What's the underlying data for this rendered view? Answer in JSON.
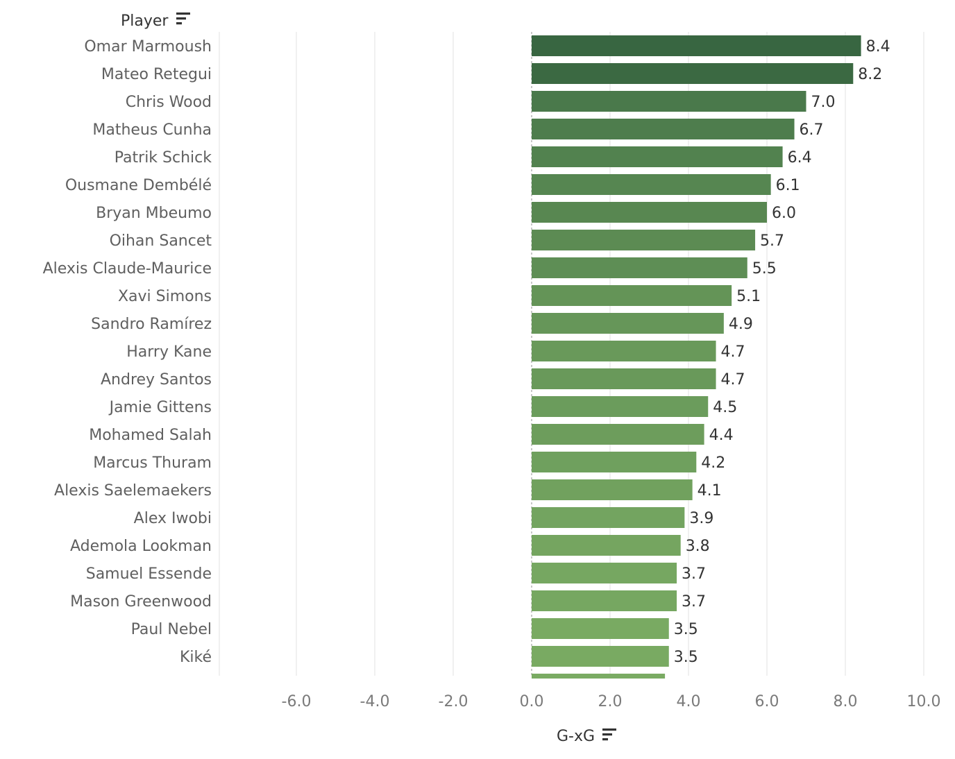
{
  "chart_data": {
    "type": "bar",
    "orientation": "horizontal",
    "ylabel": "Player",
    "xlabel": "G-xG",
    "xlim": [
      -7.0,
      10.5
    ],
    "xticks": [
      -6.0,
      -4.0,
      -2.0,
      0.0,
      2.0,
      4.0,
      6.0,
      8.0,
      10.0
    ],
    "xtick_labels": [
      "-6.0",
      "-4.0",
      "-2.0",
      "0.0",
      "2.0",
      "4.0",
      "6.0",
      "8.0",
      "10.0"
    ],
    "grid": true,
    "legend": "none",
    "color_dark": "#386641",
    "color_light": "#7aab63",
    "categories": [
      "Omar Marmoush",
      "Mateo Retegui",
      "Chris Wood",
      "Matheus Cunha",
      "Patrik Schick",
      "Ousmane Dembélé",
      "Bryan Mbeumo",
      "Oihan Sancet",
      "Alexis Claude-Maurice",
      "Xavi Simons",
      "Sandro Ramírez",
      "Harry Kane",
      "Andrey Santos",
      "Jamie Gittens",
      "Mohamed Salah",
      "Marcus Thuram",
      "Alexis Saelemaekers",
      "Alex Iwobi",
      "Ademola Lookman",
      "Samuel Essende",
      "Mason Greenwood",
      "Paul Nebel",
      "Kiké"
    ],
    "values": [
      8.4,
      8.2,
      7.0,
      6.7,
      6.4,
      6.1,
      6.0,
      5.7,
      5.5,
      5.1,
      4.9,
      4.7,
      4.7,
      4.5,
      4.4,
      4.2,
      4.1,
      3.9,
      3.8,
      3.7,
      3.7,
      3.5,
      3.5
    ],
    "value_labels": [
      "8.4",
      "8.2",
      "7.0",
      "6.7",
      "6.4",
      "6.1",
      "6.0",
      "5.7",
      "5.5",
      "5.1",
      "4.9",
      "4.7",
      "4.7",
      "4.5",
      "4.4",
      "4.2",
      "4.1",
      "3.9",
      "3.8",
      "3.7",
      "3.7",
      "3.5",
      "3.5"
    ],
    "partial_next_value": 3.4
  }
}
